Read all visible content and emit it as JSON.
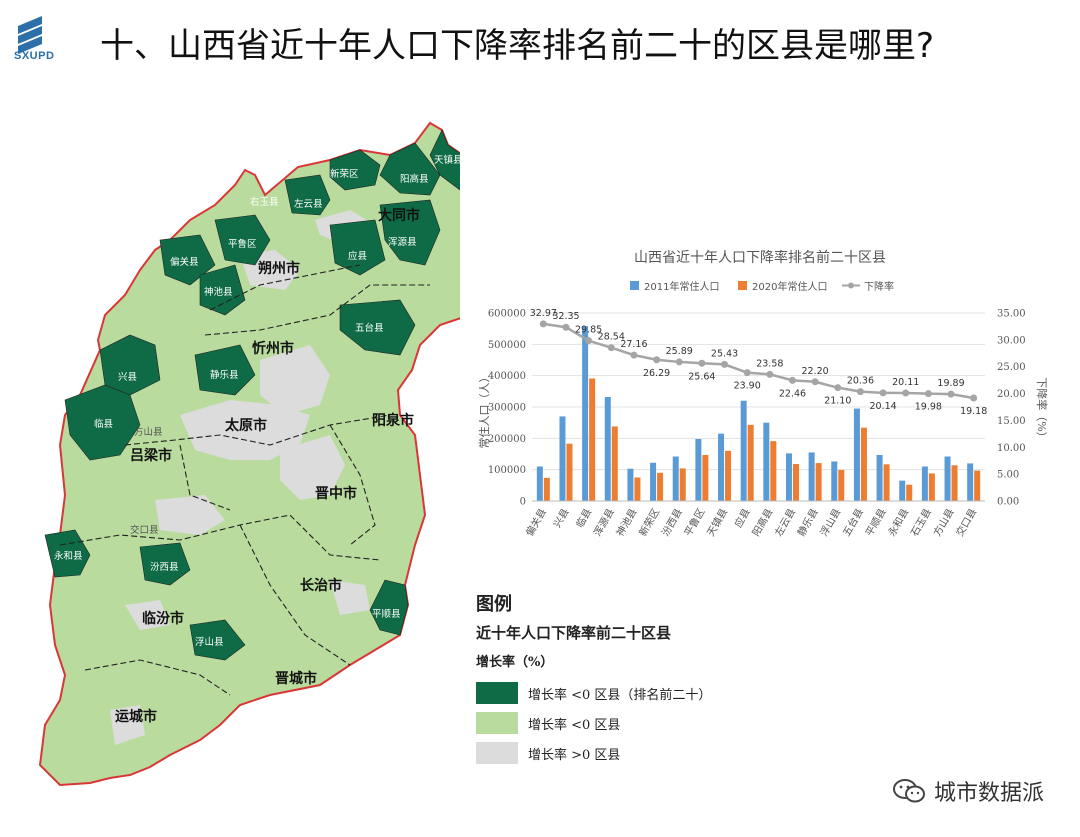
{
  "header": {
    "logo_text": "SXUPD",
    "title": "十、山西省近十年人口下降率排名前二十的区县是哪里?"
  },
  "colors": {
    "top20": "#0e6b45",
    "decline": "#b9dc9e",
    "growth": "#dcdcdc",
    "border": "#d93636",
    "bar2011": "#5b9bd5",
    "bar2020": "#ed7d31",
    "line": "#a5a5a5"
  },
  "map": {
    "cities": [
      {
        "name": "大同市"
      },
      {
        "name": "朔州市"
      },
      {
        "name": "忻州市"
      },
      {
        "name": "太原市"
      },
      {
        "name": "阳泉市"
      },
      {
        "name": "吕梁市"
      },
      {
        "name": "晋中市"
      },
      {
        "name": "长治市"
      },
      {
        "name": "临汾市"
      },
      {
        "name": "晋城市"
      },
      {
        "name": "运城市"
      }
    ],
    "counties": [
      {
        "name": "天镇县"
      },
      {
        "name": "新荣区"
      },
      {
        "name": "阳高县"
      },
      {
        "name": "右玉县"
      },
      {
        "name": "左云县"
      },
      {
        "name": "浑源县"
      },
      {
        "name": "平鲁区"
      },
      {
        "name": "应县"
      },
      {
        "name": "偏关县"
      },
      {
        "name": "神池县"
      },
      {
        "name": "五台县"
      },
      {
        "name": "兴县"
      },
      {
        "name": "静乐县"
      },
      {
        "name": "临县"
      },
      {
        "name": "方山县"
      },
      {
        "name": "交口县"
      },
      {
        "name": "永和县"
      },
      {
        "name": "汾西县"
      },
      {
        "name": "平顺县"
      },
      {
        "name": "浮山县"
      }
    ]
  },
  "legend": {
    "title": "图例",
    "subtitle": "近十年人口下降率前二十区县",
    "unit": "增长率（%）",
    "items": [
      {
        "label": "增长率 <0 区县（排名前二十）"
      },
      {
        "label": "增长率 <0 区县"
      },
      {
        "label": "增长率 >0 区县"
      }
    ]
  },
  "chart_data": {
    "type": "bar",
    "title": "山西省近十年人口下降率排名前二十区县",
    "categories": [
      "偏关县",
      "兴县",
      "临县",
      "浑源县",
      "神池县",
      "新荣区",
      "汾西县",
      "平鲁区",
      "天镇县",
      "应县",
      "阳高县",
      "左云县",
      "静乐县",
      "浮山县",
      "五台县",
      "平顺县",
      "永和县",
      "石玉县",
      "方山县",
      "交口县"
    ],
    "series": [
      {
        "name": "2011年常住人口",
        "type": "bar",
        "axis": "left",
        "values": [
          110000,
          270000,
          558000,
          332000,
          103000,
          122000,
          142000,
          198000,
          215000,
          320000,
          250000,
          152000,
          155000,
          126000,
          295000,
          147000,
          65000,
          110000,
          142000,
          120000
        ]
      },
      {
        "name": "2020年常住人口",
        "type": "bar",
        "axis": "left",
        "values": [
          74000,
          183000,
          391000,
          238000,
          75000,
          90000,
          104000,
          147000,
          160000,
          243000,
          191000,
          118000,
          121000,
          99000,
          234000,
          117000,
          52000,
          88000,
          114000,
          97000
        ]
      },
      {
        "name": "下降率",
        "type": "line",
        "axis": "right",
        "values": [
          32.97,
          32.35,
          29.85,
          28.54,
          27.16,
          26.29,
          25.89,
          25.64,
          25.43,
          23.9,
          23.58,
          22.46,
          22.2,
          21.1,
          20.36,
          20.14,
          20.11,
          19.98,
          19.89,
          19.18
        ]
      }
    ],
    "ylabel": "常住人口（人）",
    "y2label": "下降率（%）",
    "ylim": [
      0,
      600000
    ],
    "y2lim": [
      0,
      35
    ],
    "yticks": [
      "0",
      "100000",
      "200000",
      "300000",
      "400000",
      "500000",
      "600000"
    ],
    "y2ticks": [
      "0.00",
      "5.00",
      "10.00",
      "15.00",
      "20.00",
      "25.00",
      "30.00",
      "35.00"
    ],
    "legend_position": "top"
  },
  "watermark": {
    "text": "城市数据派"
  }
}
